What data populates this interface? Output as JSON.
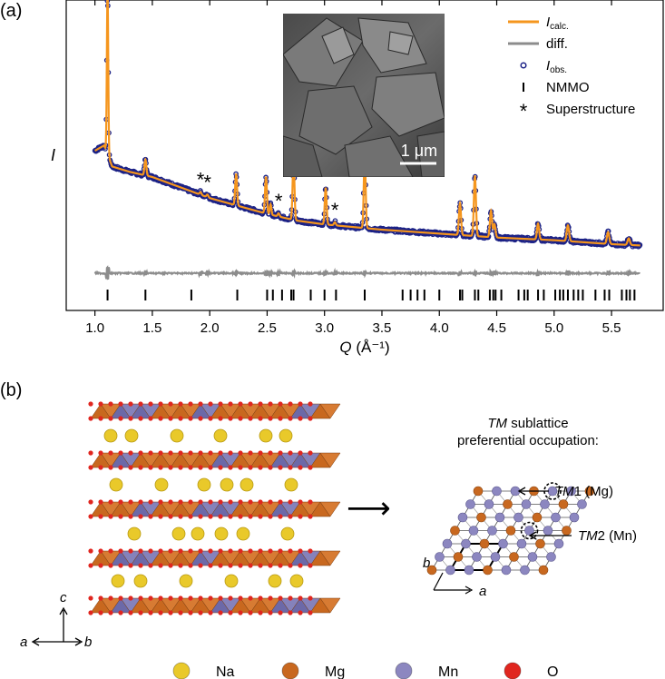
{
  "panel_a": {
    "label": "(a)",
    "inset_scale_label": "1 μm",
    "superstructure_marker": "*"
  },
  "panel_b": {
    "label": "(b)",
    "occupation_title_line1_italic": "TM",
    "occupation_title_line1_rest": " sublattice",
    "occupation_title_line2": "preferential occupation:",
    "tm1_italic": "TM",
    "tm1_rest": "1 (Mg)",
    "tm2_italic": "TM",
    "tm2_rest": "2 (Mn)",
    "axis_c": "c",
    "axis_a": "a",
    "axis_b": "b",
    "inplane_a": "a",
    "inplane_b": "b",
    "arrow_glyph": "⟶",
    "legend": [
      {
        "label": "Na",
        "color": "#e9c92a"
      },
      {
        "label": "Mg",
        "color": "#c8681f"
      },
      {
        "label": "Mn",
        "color": "#8c87c0"
      },
      {
        "label": "O",
        "color": "#e0261f"
      }
    ]
  },
  "colors": {
    "calc": "#f5961e",
    "diff": "#8c8c8c",
    "obs": "#1c2286",
    "layer_orange": "#c8681f",
    "layer_purple": "#6c69a8"
  },
  "chart_data": {
    "type": "line",
    "xlabel_italic": "Q",
    "xlabel_rest": " (Å⁻¹)",
    "ylabel": "I",
    "xlim": [
      0.75,
      5.95
    ],
    "xticks": [
      "1.0",
      "1.5",
      "2.0",
      "2.5",
      "3.0",
      "3.5",
      "4.0",
      "4.5",
      "5.0",
      "5.5"
    ],
    "xtick_values": [
      1.0,
      1.5,
      2.0,
      2.5,
      3.0,
      3.5,
      4.0,
      4.5,
      5.0,
      5.5
    ],
    "grid": false,
    "legend_position": "top-right",
    "legend": [
      {
        "main": "I",
        "sub": "calc.",
        "kind": "line",
        "series": "calc"
      },
      {
        "main": "diff.",
        "sub": "",
        "kind": "line",
        "series": "diff"
      },
      {
        "main": "I",
        "sub": "obs.",
        "kind": "circle",
        "series": "obs"
      },
      {
        "main": "NMMO",
        "sub": "",
        "kind": "tick",
        "series": "nmmo"
      },
      {
        "main": "Superstructure",
        "sub": "",
        "kind": "star",
        "series": "star"
      }
    ],
    "background": [
      [
        1.0,
        0.4
      ],
      [
        1.08,
        0.42
      ],
      [
        1.15,
        0.34
      ],
      [
        1.3,
        0.32
      ],
      [
        1.5,
        0.3
      ],
      [
        1.75,
        0.26
      ],
      [
        2.0,
        0.22
      ],
      [
        2.25,
        0.19
      ],
      [
        2.5,
        0.16
      ],
      [
        2.75,
        0.135
      ],
      [
        3.0,
        0.12
      ],
      [
        3.5,
        0.1
      ],
      [
        4.0,
        0.085
      ],
      [
        4.5,
        0.07
      ],
      [
        5.0,
        0.06
      ],
      [
        5.5,
        0.045
      ],
      [
        5.75,
        0.04
      ]
    ],
    "peaks": [
      {
        "q": 1.11,
        "h": 0.62,
        "w": 0.006
      },
      {
        "q": 1.44,
        "h": 0.06,
        "w": 0.008
      },
      {
        "q": 1.92,
        "h": 0.01,
        "w": 0.008
      },
      {
        "q": 1.98,
        "h": 0.01,
        "w": 0.008
      },
      {
        "q": 2.23,
        "h": 0.12,
        "w": 0.008
      },
      {
        "q": 2.49,
        "h": 0.14,
        "w": 0.008
      },
      {
        "q": 2.53,
        "h": 0.04,
        "w": 0.007
      },
      {
        "q": 2.6,
        "h": 0.012,
        "w": 0.008
      },
      {
        "q": 2.73,
        "h": 0.23,
        "w": 0.008
      },
      {
        "q": 3.01,
        "h": 0.14,
        "w": 0.008
      },
      {
        "q": 3.09,
        "h": 0.012,
        "w": 0.008
      },
      {
        "q": 3.35,
        "h": 0.28,
        "w": 0.008
      },
      {
        "q": 4.18,
        "h": 0.12,
        "w": 0.009
      },
      {
        "q": 4.31,
        "h": 0.23,
        "w": 0.009
      },
      {
        "q": 4.45,
        "h": 0.1,
        "w": 0.009
      },
      {
        "q": 4.48,
        "h": 0.05,
        "w": 0.009
      },
      {
        "q": 4.86,
        "h": 0.06,
        "w": 0.009
      },
      {
        "q": 5.12,
        "h": 0.06,
        "w": 0.01
      },
      {
        "q": 5.47,
        "h": 0.045,
        "w": 0.01
      },
      {
        "q": 5.65,
        "h": 0.025,
        "w": 0.01
      }
    ],
    "superstructure_q": [
      1.92,
      1.98,
      2.6,
      3.09
    ],
    "nmmo_ticks": [
      1.11,
      1.44,
      1.84,
      2.24,
      2.5,
      2.55,
      2.63,
      2.71,
      2.73,
      2.88,
      3.0,
      3.1,
      3.35,
      3.68,
      3.75,
      3.81,
      3.87,
      4.0,
      4.18,
      4.2,
      4.31,
      4.34,
      4.44,
      4.47,
      4.49,
      4.54,
      4.69,
      4.74,
      4.77,
      4.86,
      4.91,
      5.01,
      5.05,
      5.08,
      5.12,
      5.17,
      5.21,
      5.25,
      5.36,
      5.44,
      5.48,
      5.59,
      5.63,
      5.66,
      5.7
    ]
  }
}
